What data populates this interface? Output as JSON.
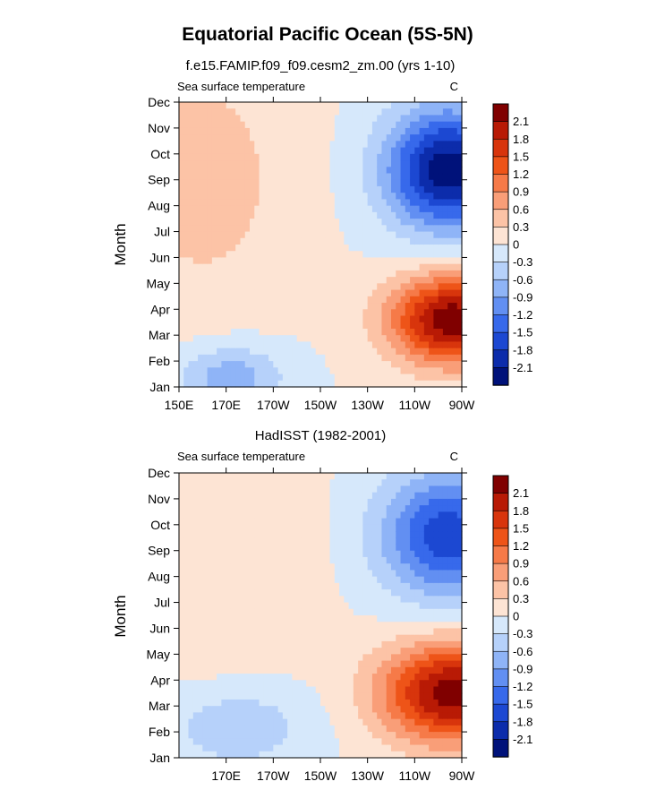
{
  "figure": {
    "title": "Equatorial Pacific Ocean (5S-5N)"
  },
  "chart_data": [
    {
      "type": "heatmap",
      "subtitle": "f.e15.FAMIP.f09_f09.cesm2_zm.00 (yrs 1-10)",
      "left_label": "Sea surface temperature",
      "right_label": "C",
      "ylabel": "Month",
      "xlabel": "",
      "xlim": [
        150,
        270
      ],
      "ylim": [
        1,
        12
      ],
      "x_ticks": [
        {
          "value": 150,
          "label": "150E"
        },
        {
          "value": 170,
          "label": "170E"
        },
        {
          "value": 190,
          "label": "170W"
        },
        {
          "value": 210,
          "label": "150W"
        },
        {
          "value": 230,
          "label": "130W"
        },
        {
          "value": 250,
          "label": "110W"
        },
        {
          "value": 270,
          "label": "90W"
        }
      ],
      "y_ticks": [
        "Jan",
        "Feb",
        "Mar",
        "Apr",
        "May",
        "Jun",
        "Jul",
        "Aug",
        "Sep",
        "Oct",
        "Nov",
        "Dec"
      ],
      "colorbar": {
        "levels": [
          "2.1",
          "1.8",
          "1.5",
          "1.2",
          "0.9",
          "0.6",
          "0.3",
          "0",
          "-0.3",
          "-0.6",
          "-0.9",
          "-1.2",
          "-1.5",
          "-1.8",
          "-2.1"
        ],
        "colors": [
          "#800000",
          "#b81a05",
          "#d8350c",
          "#ee5418",
          "#f67a48",
          "#f99e78",
          "#fcc3a6",
          "#fde4d4",
          "#d6e8fb",
          "#b6d1fa",
          "#8fb4f7",
          "#628ff2",
          "#3769eb",
          "#1c48d2",
          "#0c2cab",
          "#00127a"
        ]
      },
      "surface": {
        "base": 0.0,
        "features": [
          {
            "label": "eastern warm spring",
            "lon": 266,
            "month": 3.6,
            "amplitude": 2.35,
            "lon_width": 26,
            "month_width": 1.7
          },
          {
            "label": "eastern cold autumn",
            "lon": 264,
            "month": 9.4,
            "amplitude": -2.3,
            "lon_width": 26,
            "month_width": 2.3
          },
          {
            "label": "western warm band",
            "lon": 160,
            "month": 9.0,
            "amplitude": 0.45,
            "lon_width": 38,
            "month_width": 5.0
          },
          {
            "label": "western cold winter",
            "lon": 172,
            "month": 1.4,
            "amplitude": -0.8,
            "lon_width": 22,
            "month_width": 1.2
          }
        ]
      }
    },
    {
      "type": "heatmap",
      "subtitle": "HadISST (1982-2001)",
      "left_label": "Sea surface temperature",
      "right_label": "C",
      "ylabel": "Month",
      "xlabel": "",
      "xlim": [
        150,
        270
      ],
      "ylim": [
        1,
        12
      ],
      "x_ticks": [
        {
          "value": 170,
          "label": "170E"
        },
        {
          "value": 190,
          "label": "170W"
        },
        {
          "value": 210,
          "label": "150W"
        },
        {
          "value": 230,
          "label": "130W"
        },
        {
          "value": 250,
          "label": "110W"
        },
        {
          "value": 270,
          "label": "90W"
        }
      ],
      "y_ticks": [
        "Jan",
        "Feb",
        "Mar",
        "Apr",
        "May",
        "Jun",
        "Jul",
        "Aug",
        "Sep",
        "Oct",
        "Nov",
        "Dec"
      ],
      "colorbar": {
        "levels": [
          "2.1",
          "1.8",
          "1.5",
          "1.2",
          "0.9",
          "0.6",
          "0.3",
          "0",
          "-0.3",
          "-0.6",
          "-0.9",
          "-1.2",
          "-1.5",
          "-1.8",
          "-2.1"
        ],
        "colors": [
          "#800000",
          "#b81a05",
          "#d8350c",
          "#ee5418",
          "#f67a48",
          "#f99e78",
          "#fcc3a6",
          "#fde4d4",
          "#d6e8fb",
          "#b6d1fa",
          "#8fb4f7",
          "#628ff2",
          "#3769eb",
          "#1c48d2",
          "#0c2cab",
          "#00127a"
        ]
      },
      "surface": {
        "base": 0.0,
        "features": [
          {
            "label": "eastern warm spring",
            "lon": 266,
            "month": 3.5,
            "amplitude": 2.3,
            "lon_width": 30,
            "month_width": 1.9
          },
          {
            "label": "eastern cold autumn",
            "lon": 264,
            "month": 9.6,
            "amplitude": -1.7,
            "lon_width": 28,
            "month_width": 2.4
          },
          {
            "label": "western warm band",
            "lon": 165,
            "month": 8.5,
            "amplitude": 0.3,
            "lon_width": 40,
            "month_width": 4.5
          },
          {
            "label": "western cold winter",
            "lon": 175,
            "month": 2.2,
            "amplitude": -0.55,
            "lon_width": 30,
            "month_width": 1.6
          }
        ]
      }
    }
  ]
}
